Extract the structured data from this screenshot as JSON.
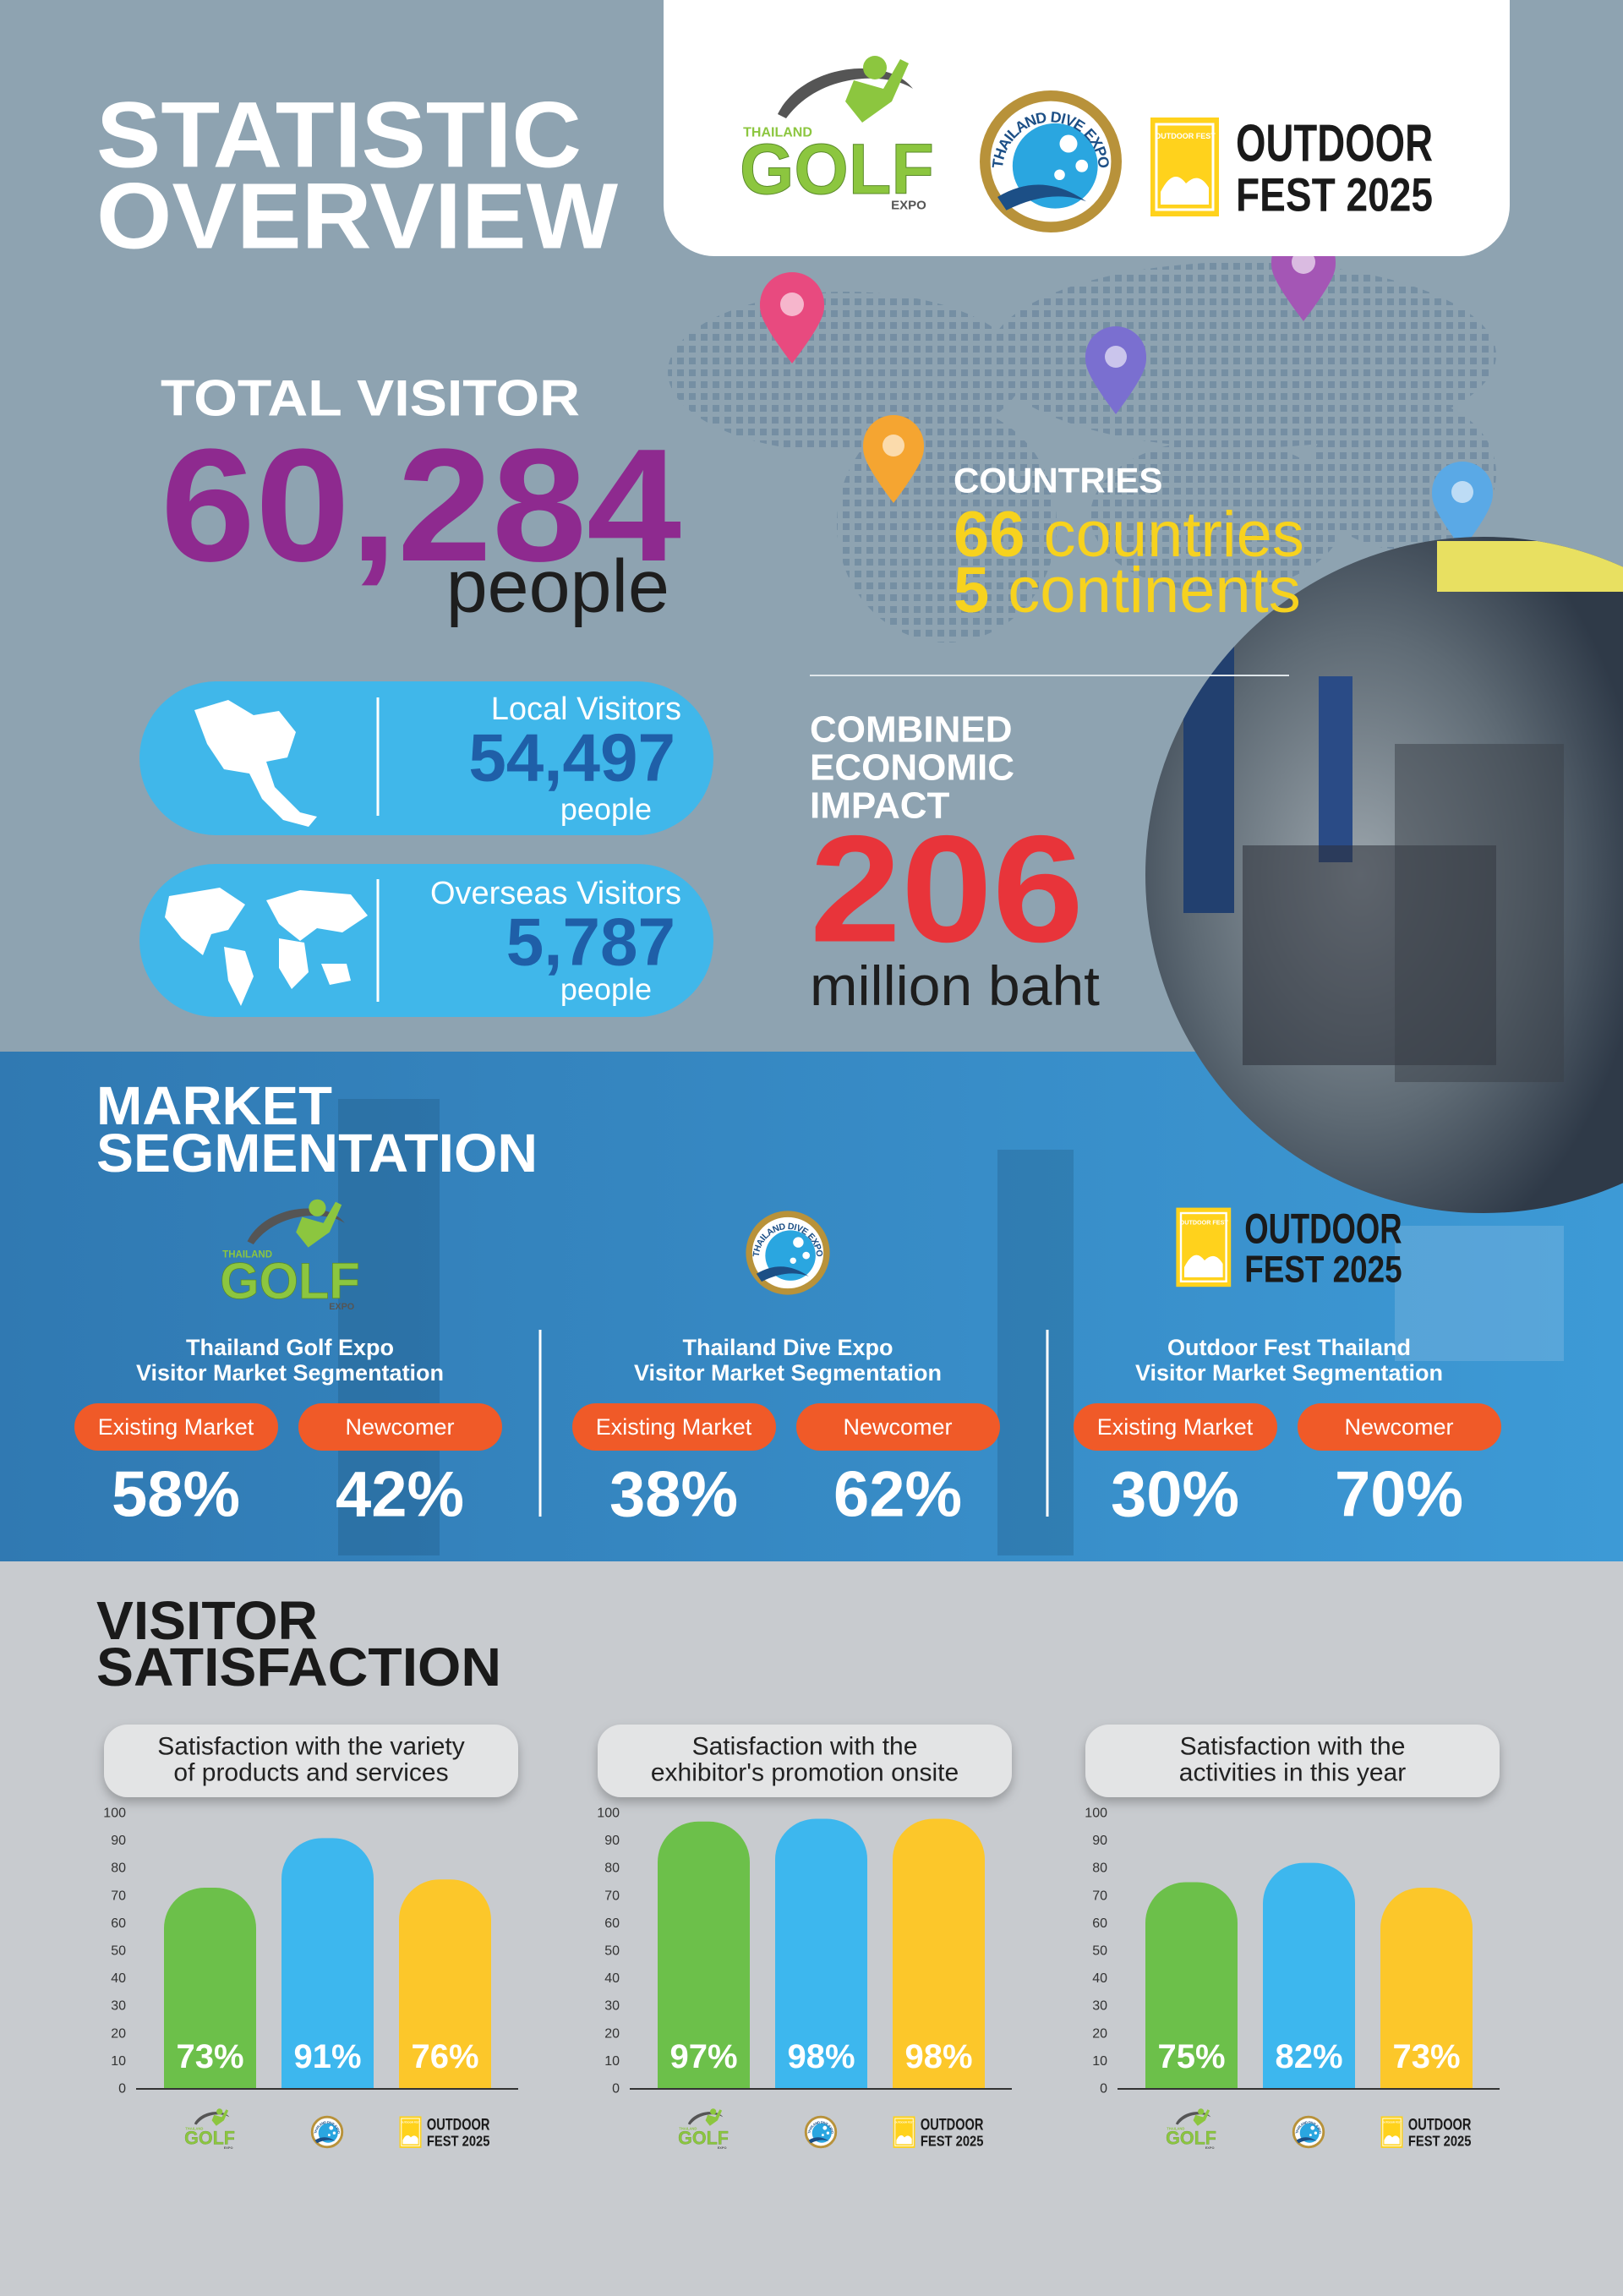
{
  "header": {
    "title": [
      "STATISTIC",
      "OVERVIEW"
    ]
  },
  "logos": {
    "golf": {
      "top": "THAILAND",
      "main": "GOLF",
      "bottom": "EXPO"
    },
    "dive": "THAILAND DIVE EXPO",
    "outdoor": {
      "badge": "OUTDOOR FEST",
      "line1": "OUTDOOR",
      "line2": "FEST 2025"
    }
  },
  "total_visitor": {
    "label": "TOTAL VISITOR",
    "value": "60,284",
    "unit": "people"
  },
  "countries": {
    "label": "COUNTRIES",
    "countries_number": "66",
    "countries_text": "countries",
    "continents_number": "5",
    "continents_text": "continents"
  },
  "local": {
    "label": "Local Visitors",
    "value": "54,497",
    "unit": "people"
  },
  "overseas": {
    "label": "Overseas Visitors",
    "value": "5,787",
    "unit": "people"
  },
  "economic": {
    "label": [
      "COMBINED",
      "ECONOMIC",
      "IMPACT"
    ],
    "value": "206",
    "unit": "million baht"
  },
  "market": {
    "title": [
      "MARKET",
      "SEGMENTATION"
    ],
    "columns": [
      {
        "title": [
          "Thailand Golf Expo",
          "Visitor Market Segmentation"
        ],
        "existing_label": "Existing Market",
        "newcomer_label": "Newcomer",
        "existing": "58%",
        "newcomer": "42%"
      },
      {
        "title": [
          "Thailand Dive Expo",
          "Visitor Market Segmentation"
        ],
        "existing_label": "Existing Market",
        "newcomer_label": "Newcomer",
        "existing": "38%",
        "newcomer": "62%"
      },
      {
        "title": [
          "Outdoor Fest Thailand",
          "Visitor Market Segmentation"
        ],
        "existing_label": "Existing Market",
        "newcomer_label": "Newcomer",
        "existing": "30%",
        "newcomer": "70%"
      }
    ]
  },
  "satisfaction": {
    "title": [
      "VISITOR",
      "SATISFACTION"
    ]
  },
  "chart_data": [
    {
      "type": "bar",
      "title": [
        "Satisfaction with the variety",
        "of products and services"
      ],
      "values": [
        73,
        91,
        76
      ],
      "value_labels": [
        "73%",
        "91%",
        "76%"
      ],
      "colors": [
        "#6cc04a",
        "#3db7ee",
        "#fcc72a"
      ],
      "ylim": [
        0,
        100
      ],
      "yticks": [
        0,
        10,
        20,
        30,
        40,
        50,
        60,
        70,
        80,
        90,
        100
      ]
    },
    {
      "type": "bar",
      "title": [
        "Satisfaction with the",
        "exhibitor's promotion onsite"
      ],
      "values": [
        97,
        98,
        98
      ],
      "value_labels": [
        "97%",
        "98%",
        "98%"
      ],
      "colors": [
        "#6cc04a",
        "#3db7ee",
        "#fcc72a"
      ],
      "ylim": [
        0,
        100
      ],
      "yticks": [
        0,
        10,
        20,
        30,
        40,
        50,
        60,
        70,
        80,
        90,
        100
      ]
    },
    {
      "type": "bar",
      "title": [
        "Satisfaction with the",
        "activities in this year"
      ],
      "values": [
        75,
        82,
        73
      ],
      "value_labels": [
        "75%",
        "82%",
        "73%"
      ],
      "colors": [
        "#6cc04a",
        "#3db7ee",
        "#fcc72a"
      ],
      "ylim": [
        0,
        100
      ],
      "yticks": [
        0,
        10,
        20,
        30,
        40,
        50,
        60,
        70,
        80,
        90,
        100
      ]
    }
  ]
}
